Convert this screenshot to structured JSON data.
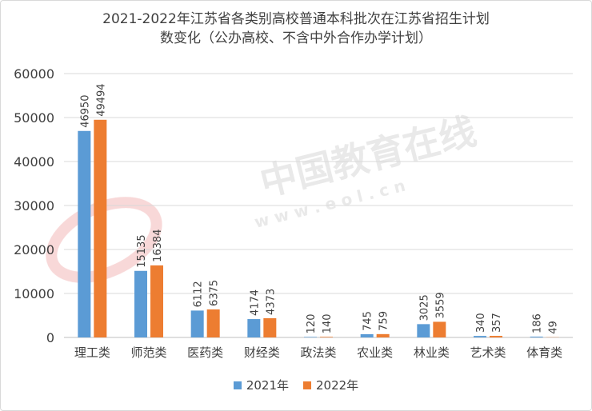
{
  "chart_data": {
    "type": "bar",
    "title_line1": "2021-2022年江苏省各类别高校普通本科批次在江苏省招生计划",
    "title_line2": "数变化（公办高校、不含中外合作办学计划）",
    "categories": [
      "理工类",
      "师范类",
      "医药类",
      "财经类",
      "政法类",
      "农业类",
      "林业类",
      "艺术类",
      "体育类"
    ],
    "series": [
      {
        "name": "2021年",
        "color": "#5b9bd5",
        "values": [
          46950,
          15135,
          6112,
          4174,
          120,
          745,
          3025,
          340,
          186
        ]
      },
      {
        "name": "2022年",
        "color": "#ed7d31",
        "values": [
          49494,
          16384,
          6375,
          4373,
          140,
          759,
          3559,
          357,
          49
        ]
      }
    ],
    "ylim": [
      0,
      60000
    ],
    "yticks": [
      0,
      10000,
      20000,
      30000,
      40000,
      50000,
      60000
    ],
    "grid": true,
    "legend_position": "bottom"
  },
  "watermark": {
    "main": "中国教育在线",
    "sub": "w w w . e o l . c n"
  }
}
